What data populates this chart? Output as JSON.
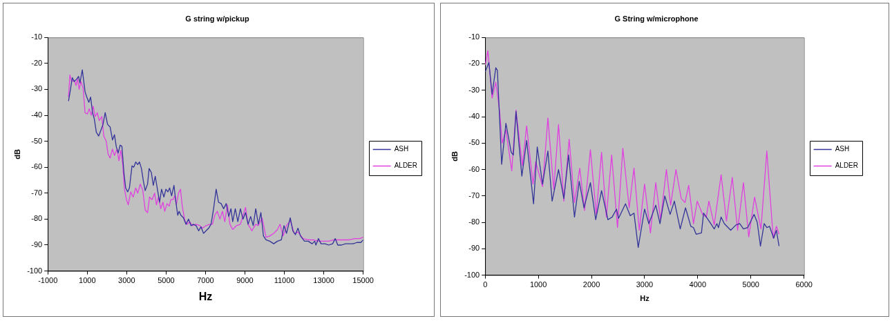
{
  "chart_data": [
    {
      "type": "line",
      "title": "G string w/pickup",
      "xlabel": "Hz",
      "ylabel": "dB",
      "xlim": [
        -1000,
        15000
      ],
      "xticks": [
        -1000,
        1000,
        3000,
        5000,
        7000,
        9000,
        11000,
        13000,
        15000
      ],
      "ylim": [
        -100,
        -10
      ],
      "yticks": [
        -100,
        -90,
        -80,
        -70,
        -60,
        -50,
        -40,
        -30,
        -20,
        -10
      ],
      "grid": false,
      "legend": "right",
      "marker": "none",
      "line_style": "solid",
      "series": [
        {
          "name": "ASH",
          "color": "#333399",
          "x": [
            50,
            150,
            240,
            340,
            470,
            560,
            630,
            750,
            890,
            980,
            1080,
            1170,
            1270,
            1360,
            1460,
            1580,
            1680,
            1800,
            1910,
            2030,
            2160,
            2280,
            2380,
            2470,
            2570,
            2670,
            2760,
            2860,
            2950,
            3050,
            3140,
            3270,
            3360,
            3460,
            3560,
            3650,
            3750,
            3840,
            3940,
            4060,
            4140,
            4250,
            4350,
            4450,
            4560,
            4670,
            4770,
            4890,
            4990,
            5090,
            5180,
            5280,
            5400,
            5500,
            5590,
            5660,
            5750,
            5880,
            6010,
            6140,
            6260,
            6390,
            6520,
            6650,
            6770,
            6900,
            7030,
            7160,
            7280,
            7410,
            7540,
            7660,
            7790,
            7920,
            8050,
            8180,
            8290,
            8380,
            8510,
            8640,
            8770,
            8900,
            9030,
            9160,
            9290,
            9420,
            9550,
            9680,
            9810,
            9940,
            10070,
            10260,
            10460,
            10650,
            10850,
            10980,
            11110,
            11300,
            11430,
            11560,
            11690,
            11820,
            12020,
            12210,
            12410,
            12540,
            12600,
            12730,
            12860,
            13060,
            13250,
            13450,
            13580,
            13710,
            13900,
            14100,
            14290,
            14490,
            14680,
            14880,
            15000
          ],
          "values": [
            -34.5,
            -30,
            -25.5,
            -27,
            -26,
            -25,
            -27.5,
            -22.5,
            -31,
            -33,
            -35,
            -33,
            -39,
            -41.5,
            -46.5,
            -48,
            -46,
            -43.5,
            -39,
            -43.5,
            -44.5,
            -49.5,
            -47.5,
            -52,
            -54.5,
            -51.5,
            -52,
            -62,
            -68,
            -69.5,
            -68,
            -59.5,
            -60,
            -58,
            -59,
            -58,
            -60.5,
            -65,
            -69,
            -66.5,
            -60.5,
            -62,
            -67,
            -63.5,
            -68.5,
            -73.5,
            -68.5,
            -71.5,
            -68.5,
            -69.5,
            -68,
            -71,
            -67,
            -73.5,
            -78.5,
            -77,
            -78.5,
            -79.5,
            -82,
            -80,
            -82.5,
            -82,
            -82.5,
            -84.5,
            -83,
            -85.5,
            -84.5,
            -83.5,
            -82,
            -76,
            -68.5,
            -73.5,
            -74,
            -76,
            -74,
            -79,
            -76,
            -81,
            -76,
            -81,
            -76,
            -80,
            -77.5,
            -82,
            -79,
            -82.5,
            -76,
            -82,
            -77.5,
            -86.5,
            -88,
            -88.5,
            -89.5,
            -88.5,
            -88,
            -82.5,
            -85.5,
            -79.5,
            -84.5,
            -86,
            -83.5,
            -86.5,
            -88.5,
            -88.5,
            -89.5,
            -88.5,
            -90,
            -87.5,
            -89.5,
            -89.5,
            -90,
            -89.5,
            -87.5,
            -90,
            -90,
            -89.5,
            -89.5,
            -89.5,
            -89,
            -89,
            -88
          ]
        },
        {
          "name": "ALDER",
          "color": "#e040e0",
          "x": [
            50,
            120,
            210,
            340,
            430,
            510,
            590,
            680,
            790,
            890,
            1010,
            1100,
            1210,
            1300,
            1400,
            1510,
            1610,
            1740,
            1840,
            1960,
            2060,
            2160,
            2280,
            2380,
            2510,
            2610,
            2700,
            2800,
            2890,
            2990,
            3080,
            3210,
            3330,
            3460,
            3560,
            3690,
            3820,
            3940,
            4060,
            4160,
            4290,
            4420,
            4510,
            4610,
            4730,
            4840,
            4930,
            5050,
            5160,
            5240,
            5350,
            5440,
            5520,
            5630,
            5730,
            5820,
            5950,
            6070,
            6200,
            6330,
            6520,
            6710,
            6840,
            7030,
            7220,
            7350,
            7470,
            7600,
            7730,
            7860,
            7980,
            8110,
            8240,
            8380,
            8570,
            8770,
            9030,
            9160,
            9350,
            9550,
            9680,
            9870,
            10070,
            10260,
            10460,
            10650,
            10780,
            10940,
            11110,
            11300,
            11500,
            11690,
            11950,
            12210,
            12470,
            12730,
            12990,
            13250,
            13510,
            13770,
            14030,
            14290,
            14550,
            14820,
            15000
          ],
          "values": [
            -33,
            -24.5,
            -27,
            -26.5,
            -28.5,
            -26,
            -30,
            -27,
            -29.5,
            -39,
            -39.5,
            -37.5,
            -40,
            -36.5,
            -40.5,
            -39,
            -42,
            -40.5,
            -48,
            -50,
            -55,
            -56.5,
            -53,
            -55.5,
            -53,
            -57.5,
            -53.5,
            -59,
            -68.5,
            -72.5,
            -74.5,
            -69.5,
            -71.5,
            -68,
            -70,
            -66.5,
            -69,
            -76.5,
            -77.5,
            -71.5,
            -72.5,
            -70,
            -74.5,
            -71.5,
            -76,
            -73.5,
            -77,
            -74,
            -75,
            -72.5,
            -72.5,
            -71,
            -74.5,
            -70,
            -68.5,
            -75,
            -80.5,
            -82,
            -81,
            -82.5,
            -82,
            -82.5,
            -83.5,
            -82.5,
            -82,
            -82,
            -78.5,
            -77,
            -80,
            -77,
            -81,
            -74.5,
            -82,
            -84,
            -82.5,
            -82,
            -75.5,
            -82,
            -84.5,
            -82,
            -82.5,
            -79.5,
            -87,
            -86.5,
            -85.5,
            -84,
            -82,
            -86.5,
            -82.5,
            -80.5,
            -85.5,
            -85,
            -87.5,
            -88,
            -88,
            -88.5,
            -88.5,
            -88.5,
            -88,
            -88,
            -88,
            -88,
            -87.5,
            -87.5,
            -87
          ]
        }
      ]
    },
    {
      "type": "line",
      "title": "G String w/microphone",
      "xlabel": "Hz",
      "ylabel": "dB",
      "xlim": [
        0,
        6000
      ],
      "xticks": [
        0,
        1000,
        2000,
        3000,
        4000,
        5000,
        6000
      ],
      "ylim": [
        -100,
        -10
      ],
      "yticks": [
        -100,
        -90,
        -80,
        -70,
        -60,
        -50,
        -40,
        -30,
        -20,
        -10
      ],
      "grid": false,
      "legend": "right",
      "marker": "none",
      "line_style": "solid",
      "series": [
        {
          "name": "ASH",
          "color": "#333399",
          "x": [
            0,
            70,
            130,
            200,
            230,
            310,
            390,
            490,
            530,
            580,
            690,
            780,
            910,
            980,
            1080,
            1180,
            1260,
            1380,
            1480,
            1570,
            1680,
            1770,
            1860,
            1980,
            2080,
            2190,
            2310,
            2390,
            2470,
            2510,
            2640,
            2730,
            2800,
            2880,
            3000,
            3080,
            3210,
            3290,
            3380,
            3480,
            3560,
            3670,
            3770,
            3870,
            3920,
            3970,
            4070,
            4110,
            4230,
            4310,
            4360,
            4390,
            4440,
            4500,
            4620,
            4720,
            4790,
            4860,
            4940,
            5060,
            5120,
            5180,
            5250,
            5300,
            5350,
            5430,
            5480,
            5530
          ],
          "values": [
            -23,
            -19.5,
            -31.5,
            -21.5,
            -22.5,
            -58,
            -42.5,
            -53.5,
            -54.5,
            -38,
            -62.5,
            -49,
            -73,
            -51.5,
            -65.5,
            -53,
            -72,
            -60,
            -71,
            -54.5,
            -78,
            -64.5,
            -74.5,
            -65,
            -79,
            -68,
            -79,
            -78,
            -75,
            -78.5,
            -73,
            -77.5,
            -76.5,
            -89.5,
            -75,
            -80.5,
            -73.5,
            -80.5,
            -70,
            -77,
            -72,
            -82.5,
            -74.5,
            -81.5,
            -82,
            -84.5,
            -84,
            -76.5,
            -80,
            -82.5,
            -80.5,
            -82,
            -78,
            -80.5,
            -83,
            -81,
            -80.5,
            -82.5,
            -82,
            -77,
            -80,
            -89,
            -80.5,
            -82,
            -81.5,
            -86,
            -83,
            -89
          ]
        },
        {
          "name": "ALDER",
          "color": "#e040e0",
          "x": [
            0,
            50,
            130,
            200,
            270,
            320,
            390,
            500,
            580,
            700,
            780,
            900,
            950,
            1080,
            1180,
            1290,
            1380,
            1480,
            1580,
            1680,
            1780,
            1870,
            1980,
            2090,
            2190,
            2280,
            2380,
            2490,
            2590,
            2710,
            2800,
            2900,
            3000,
            3110,
            3210,
            3300,
            3410,
            3490,
            3590,
            3690,
            3760,
            3830,
            3920,
            3990,
            4090,
            4160,
            4210,
            4310,
            4440,
            4540,
            4650,
            4750,
            4860,
            4960,
            5070,
            5190,
            5300,
            5420,
            5480,
            5530
          ],
          "values": [
            -20.5,
            -15,
            -33,
            -27,
            -37.5,
            -50,
            -45,
            -60.5,
            -37.5,
            -58.5,
            -43.5,
            -65.5,
            -57,
            -66.5,
            -40.5,
            -67.5,
            -43,
            -72,
            -48.5,
            -72.5,
            -59.5,
            -75.5,
            -52.5,
            -77,
            -53.5,
            -78,
            -54.5,
            -82,
            -52,
            -74.5,
            -59.5,
            -83,
            -65.5,
            -84,
            -65,
            -79,
            -60,
            -73.5,
            -60,
            -71,
            -72.5,
            -66,
            -80.5,
            -72,
            -77,
            -78,
            -72,
            -81,
            -62,
            -79.5,
            -63,
            -83,
            -65,
            -85.5,
            -70.5,
            -82.5,
            -53,
            -86,
            -81.5,
            -84.5
          ]
        }
      ]
    }
  ]
}
